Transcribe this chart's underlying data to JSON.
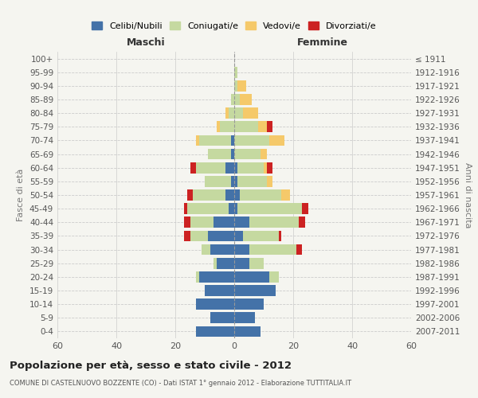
{
  "age_groups": [
    "0-4",
    "5-9",
    "10-14",
    "15-19",
    "20-24",
    "25-29",
    "30-34",
    "35-39",
    "40-44",
    "45-49",
    "50-54",
    "55-59",
    "60-64",
    "65-69",
    "70-74",
    "75-79",
    "80-84",
    "85-89",
    "90-94",
    "95-99",
    "100+"
  ],
  "birth_years": [
    "2007-2011",
    "2002-2006",
    "1997-2001",
    "1992-1996",
    "1987-1991",
    "1982-1986",
    "1977-1981",
    "1972-1976",
    "1967-1971",
    "1962-1966",
    "1957-1961",
    "1952-1956",
    "1947-1951",
    "1942-1946",
    "1937-1941",
    "1932-1936",
    "1927-1931",
    "1922-1926",
    "1917-1921",
    "1912-1916",
    "≤ 1911"
  ],
  "colors": {
    "celibi": "#4472a8",
    "coniugati": "#c5d9a0",
    "vedovi": "#f5c96a",
    "divorziati": "#cc2222"
  },
  "males": {
    "celibi": [
      13,
      8,
      13,
      10,
      12,
      6,
      8,
      9,
      7,
      2,
      3,
      1,
      3,
      1,
      1,
      0,
      0,
      0,
      0,
      0,
      0
    ],
    "coniugati": [
      0,
      0,
      0,
      0,
      1,
      1,
      3,
      6,
      8,
      14,
      11,
      9,
      10,
      8,
      11,
      5,
      2,
      1,
      0,
      0,
      0
    ],
    "vedovi": [
      0,
      0,
      0,
      0,
      0,
      0,
      0,
      0,
      0,
      0,
      0,
      0,
      0,
      0,
      1,
      1,
      1,
      0,
      0,
      0,
      0
    ],
    "divorziati": [
      0,
      0,
      0,
      0,
      0,
      0,
      0,
      2,
      2,
      1,
      2,
      0,
      2,
      0,
      0,
      0,
      0,
      0,
      0,
      0,
      0
    ]
  },
  "females": {
    "nubili": [
      9,
      7,
      10,
      14,
      12,
      5,
      5,
      3,
      5,
      1,
      2,
      1,
      1,
      0,
      0,
      0,
      0,
      0,
      0,
      0,
      0
    ],
    "coniugate": [
      0,
      0,
      0,
      0,
      3,
      5,
      16,
      12,
      17,
      22,
      14,
      10,
      9,
      9,
      12,
      8,
      3,
      2,
      1,
      1,
      0
    ],
    "vedove": [
      0,
      0,
      0,
      0,
      0,
      0,
      0,
      0,
      0,
      0,
      3,
      2,
      1,
      2,
      5,
      3,
      5,
      4,
      3,
      0,
      0
    ],
    "divorziate": [
      0,
      0,
      0,
      0,
      0,
      0,
      2,
      1,
      2,
      2,
      0,
      0,
      2,
      0,
      0,
      2,
      0,
      0,
      0,
      0,
      0
    ]
  },
  "xlim": 60,
  "title": "Popolazione per età, sesso e stato civile - 2012",
  "subtitle": "COMUNE DI CASTELNUOVO BOZZENTE (CO) - Dati ISTAT 1° gennaio 2012 - Elaborazione TUTTITALIA.IT",
  "xlabel_left": "Maschi",
  "xlabel_right": "Femmine",
  "ylabel_left": "Fasce di età",
  "ylabel_right": "Anni di nascita",
  "legend_labels": [
    "Celibi/Nubili",
    "Coniugati/e",
    "Vedovi/e",
    "Divorziati/e"
  ],
  "background_color": "#f5f5f0",
  "plot_bg_color": "#f5f5f0",
  "grid_color": "#cccccc"
}
